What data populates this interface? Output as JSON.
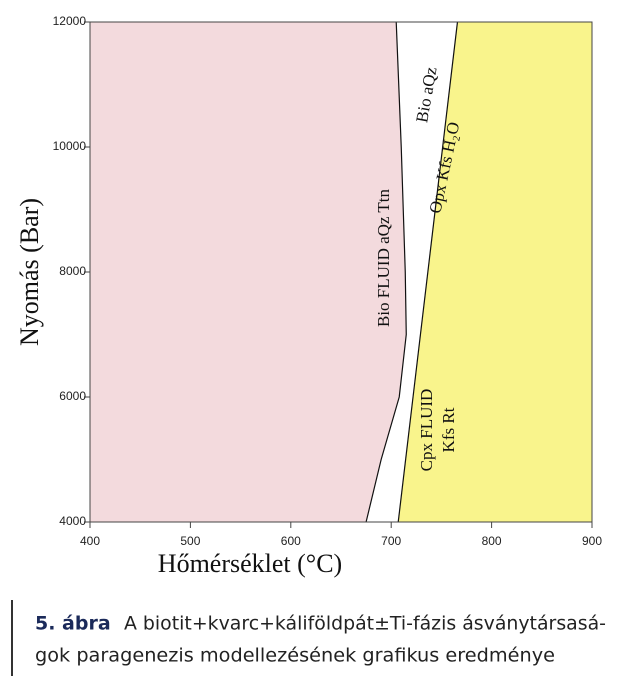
{
  "chart_data": {
    "type": "line",
    "xlabel": "Hőmérséklet (°C)",
    "ylabel": "Nyomás (Bar)",
    "xlim": [
      400,
      900
    ],
    "xticks": [
      400,
      500,
      600,
      700,
      800,
      900
    ],
    "ylim": [
      4000,
      12000
    ],
    "yticks": [
      4000,
      6000,
      8000,
      10000,
      12000
    ],
    "series": [
      {
        "color": "#111111",
        "x": [
          705,
          710,
          714,
          715,
          708,
          690,
          675
        ],
        "y": [
          12000,
          10000,
          8000,
          7000,
          6000,
          5000,
          4000
        ]
      },
      {
        "color": "#111111",
        "x": [
          766,
          707
        ],
        "y": [
          12000,
          4000
        ]
      }
    ],
    "region_colors": [
      "#f3dadd",
      "#ffffff",
      "#f9f48c"
    ],
    "region_labels": [
      "Bio FLUID aQz Ttn",
      "Bio aQz",
      "Opx Kfs H₂O",
      "Cpx FLUID",
      "Kfs Rt"
    ]
  },
  "caption": {
    "label": "5. ábra",
    "lines": [
      "A biotit+kvarc+káliföldpát±Ti-fázis ásványtársasá-",
      "gok paragenezis modellezésének grafikus eredménye"
    ]
  }
}
